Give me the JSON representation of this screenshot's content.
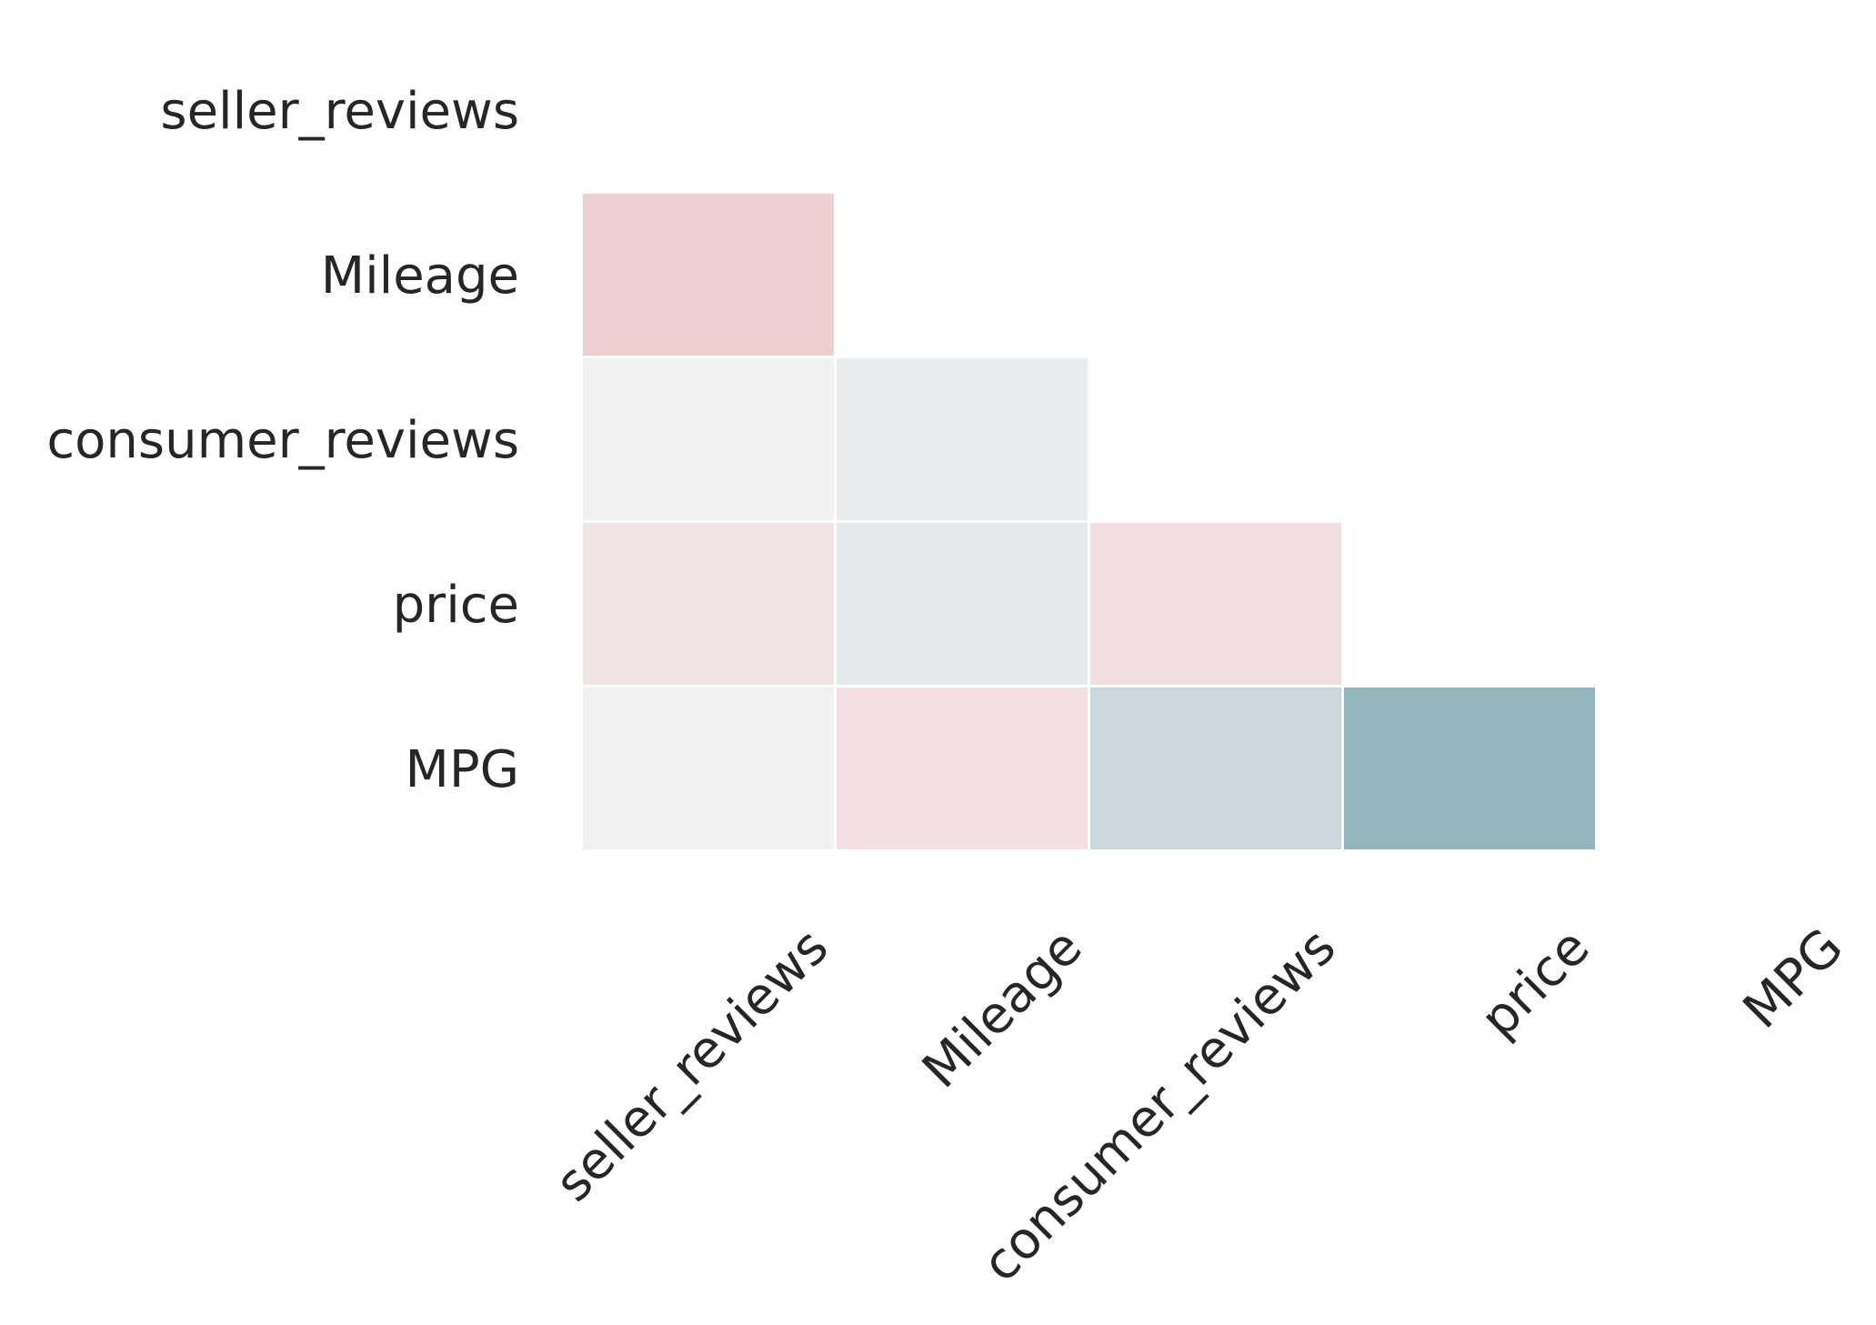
{
  "chart_data": {
    "type": "heatmap",
    "title": "",
    "xlabel": "",
    "ylabel": "",
    "x_categories": [
      "seller_reviews",
      "Mileage",
      "consumer_reviews",
      "price",
      "MPG"
    ],
    "y_categories": [
      "seller_reviews",
      "Mileage",
      "consumer_reviews",
      "price",
      "MPG"
    ],
    "mask": "upper-triangle-including-diagonal",
    "grid": false,
    "cells": [
      {
        "row": "Mileage",
        "col": "seller_reviews",
        "color": "#eecfd2"
      },
      {
        "row": "consumer_reviews",
        "col": "seller_reviews",
        "color": "#f1f1f1"
      },
      {
        "row": "consumer_reviews",
        "col": "Mileage",
        "color": "#eaedf0"
      },
      {
        "row": "price",
        "col": "seller_reviews",
        "color": "#f1e5e6"
      },
      {
        "row": "price",
        "col": "Mileage",
        "color": "#e5eaee"
      },
      {
        "row": "price",
        "col": "consumer_reviews",
        "color": "#f0dddd"
      },
      {
        "row": "MPG",
        "col": "seller_reviews",
        "color": "#f1f1f1"
      },
      {
        "row": "MPG",
        "col": "Mileage",
        "color": "#f1e1e2"
      },
      {
        "row": "MPG",
        "col": "consumer_reviews",
        "color": "#cad8de"
      },
      {
        "row": "MPG",
        "col": "price",
        "color": "#94b5bd"
      }
    ]
  }
}
